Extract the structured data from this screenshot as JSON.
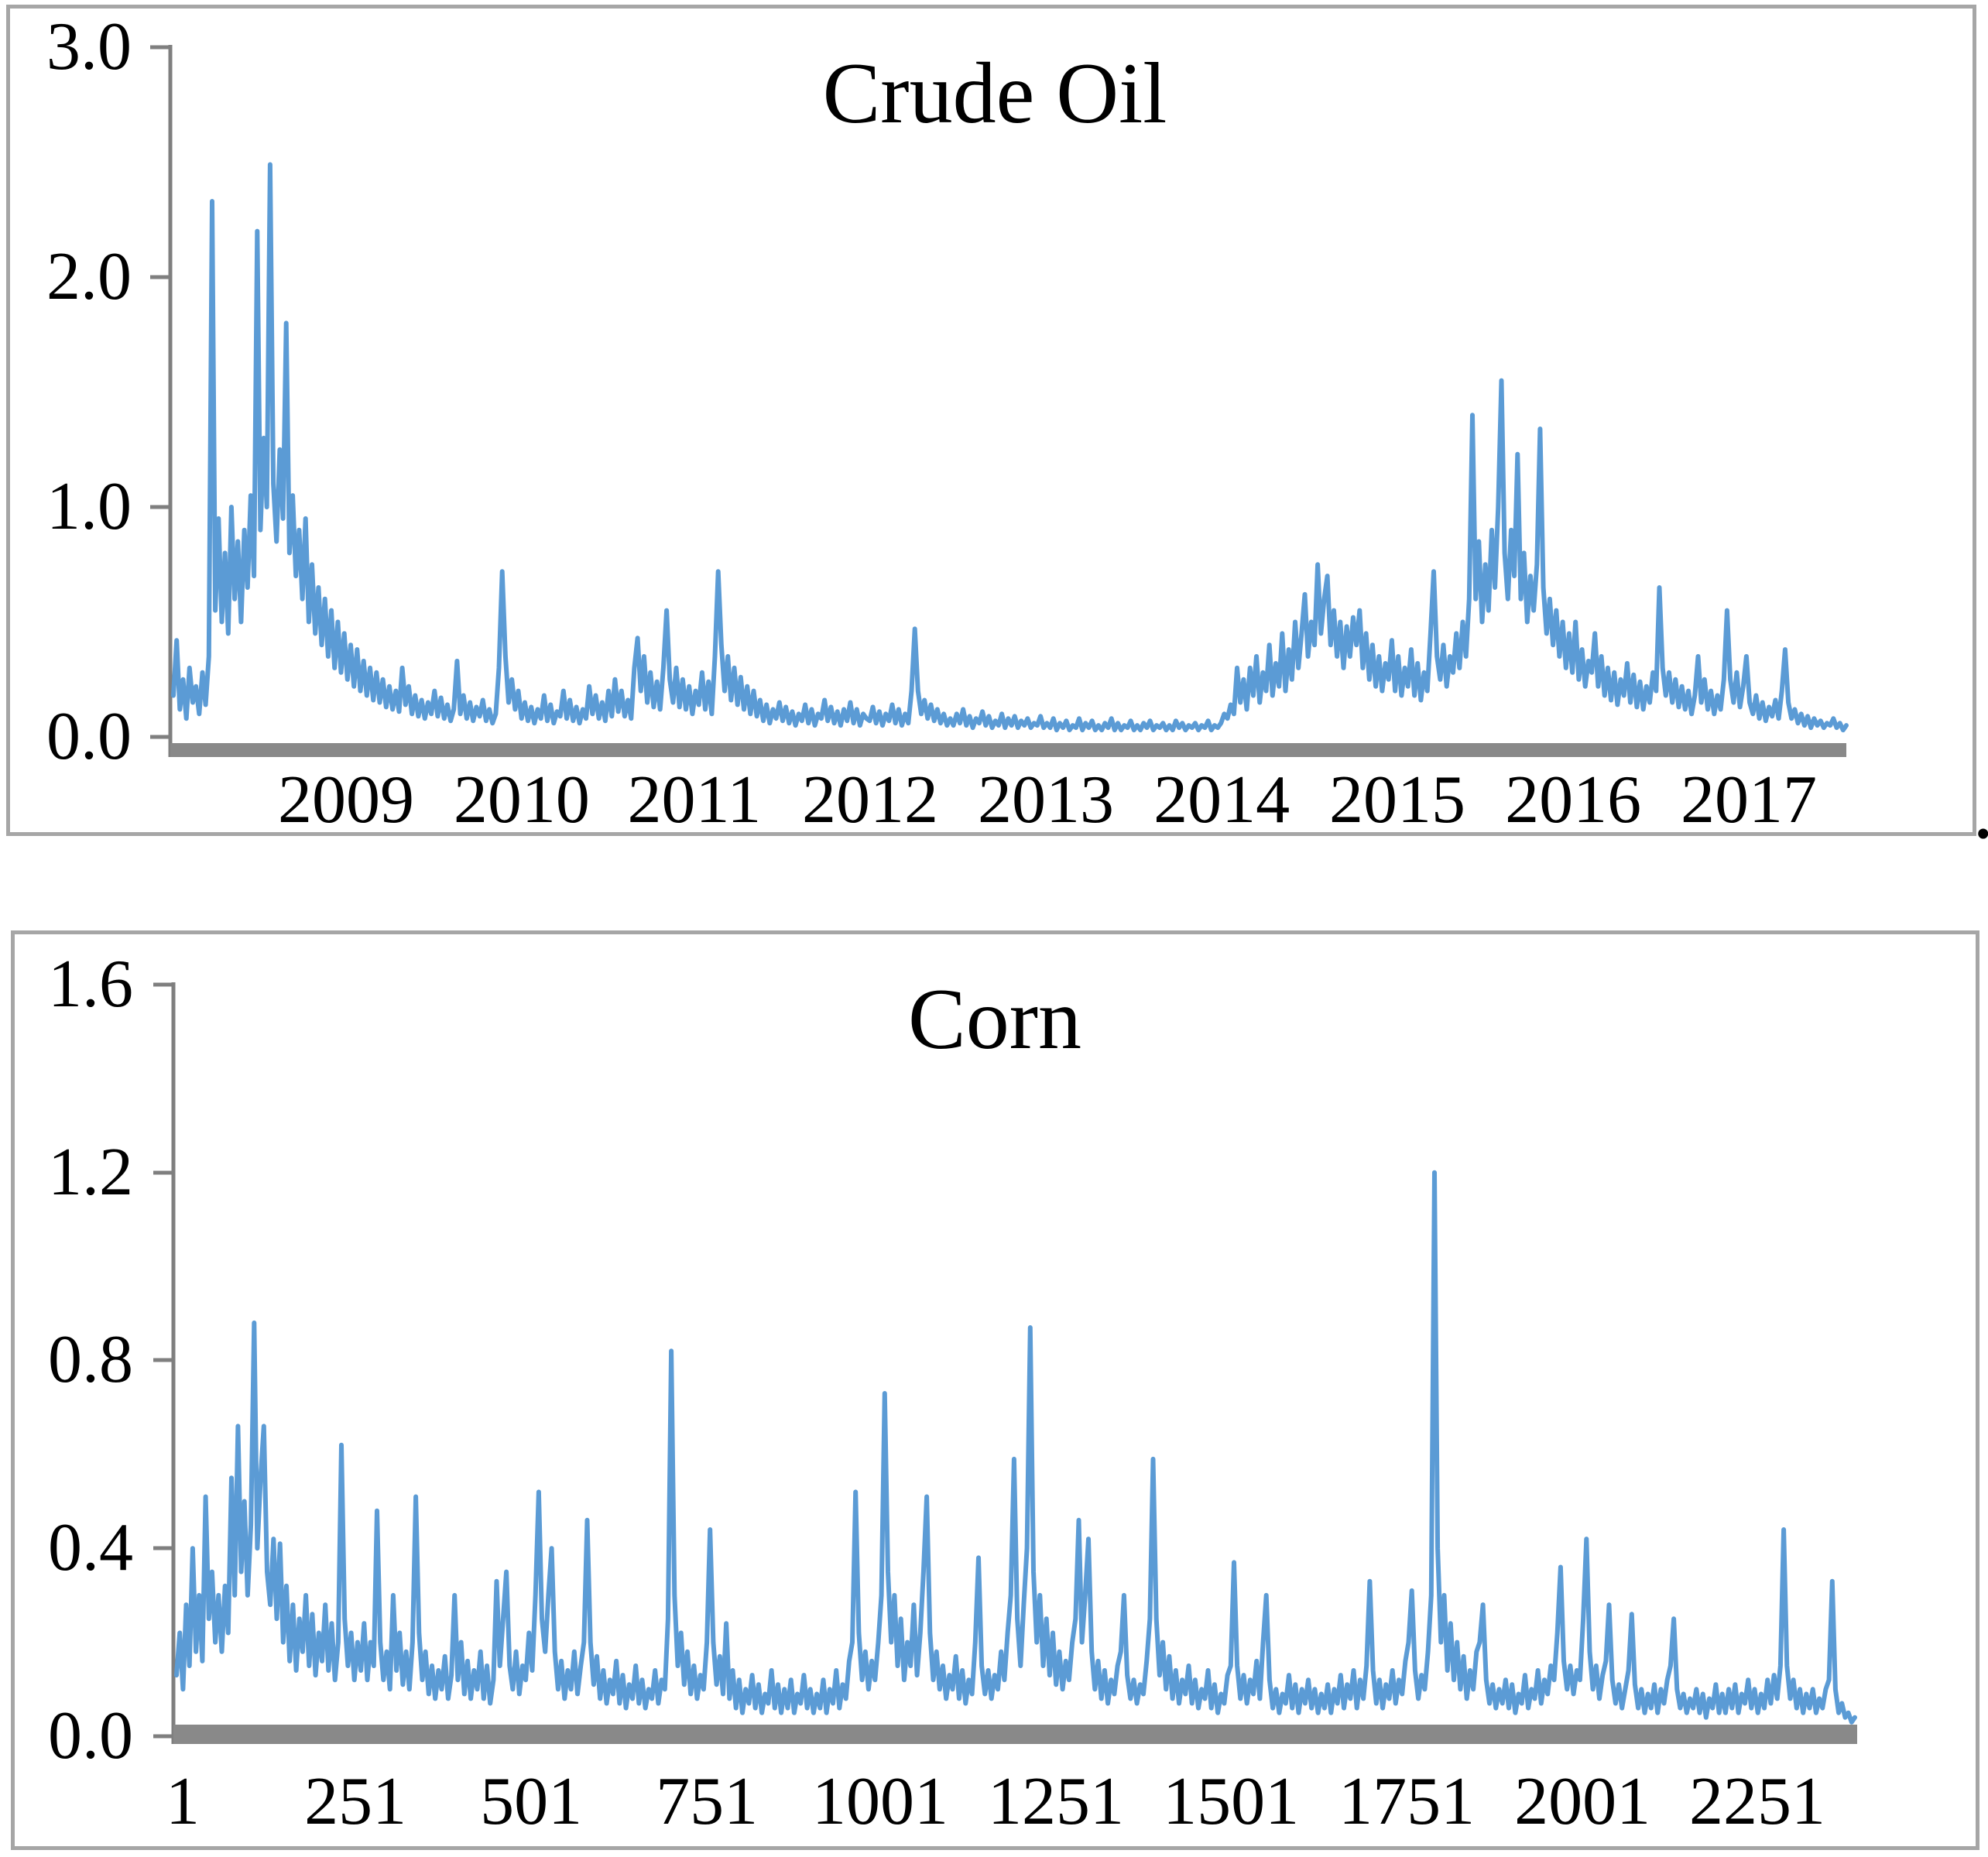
{
  "figure": {
    "trailing_period": ".",
    "background_color": "#ffffff",
    "border_color": "#a6a6a6",
    "axis_color": "#7f7f7f",
    "baseline_bar_color": "#898989",
    "series_color": "#5b9bd5"
  },
  "chart_data": [
    {
      "type": "line",
      "title": "Crude Oil",
      "legend": "none",
      "grid": "off",
      "line_color": "#5b9bd5",
      "ylim": [
        0.0,
        3.0
      ],
      "y_tick_labels": [
        "3.0",
        "2.0",
        "1.0",
        "0.0"
      ],
      "y_tick_values": [
        3.0,
        2.0,
        1.0,
        0.0
      ],
      "x_tick_labels": [
        "2009",
        "2010",
        "2011",
        "2012",
        "2013",
        "2014",
        "2015",
        "2016",
        "2017"
      ],
      "x_tick_positions": [
        0.1032,
        0.2082,
        0.3114,
        0.4165,
        0.5215,
        0.6266,
        0.7316,
        0.8367,
        0.9417
      ],
      "x_range_note": "daily observations mid-2008 through 2017",
      "values": [
        0.18,
        0.42,
        0.12,
        0.25,
        0.08,
        0.3,
        0.15,
        0.22,
        0.1,
        0.28,
        0.14,
        0.35,
        2.33,
        0.55,
        0.95,
        0.5,
        0.8,
        0.45,
        1.0,
        0.6,
        0.85,
        0.5,
        0.9,
        0.65,
        1.05,
        0.7,
        2.2,
        0.9,
        1.3,
        1.0,
        2.49,
        1.1,
        0.85,
        1.25,
        0.95,
        1.8,
        0.8,
        1.05,
        0.7,
        0.9,
        0.6,
        0.95,
        0.5,
        0.75,
        0.45,
        0.65,
        0.4,
        0.6,
        0.35,
        0.55,
        0.3,
        0.5,
        0.28,
        0.45,
        0.25,
        0.4,
        0.22,
        0.38,
        0.2,
        0.33,
        0.18,
        0.3,
        0.16,
        0.28,
        0.15,
        0.25,
        0.13,
        0.22,
        0.12,
        0.2,
        0.11,
        0.3,
        0.14,
        0.22,
        0.1,
        0.18,
        0.09,
        0.16,
        0.08,
        0.15,
        0.1,
        0.2,
        0.09,
        0.17,
        0.08,
        0.14,
        0.07,
        0.12,
        0.33,
        0.1,
        0.18,
        0.08,
        0.15,
        0.07,
        0.13,
        0.09,
        0.16,
        0.07,
        0.12,
        0.06,
        0.1,
        0.3,
        0.72,
        0.35,
        0.15,
        0.25,
        0.12,
        0.2,
        0.08,
        0.15,
        0.07,
        0.13,
        0.06,
        0.12,
        0.08,
        0.18,
        0.07,
        0.14,
        0.06,
        0.11,
        0.09,
        0.2,
        0.08,
        0.16,
        0.07,
        0.13,
        0.06,
        0.12,
        0.08,
        0.22,
        0.1,
        0.18,
        0.08,
        0.15,
        0.07,
        0.2,
        0.09,
        0.25,
        0.11,
        0.2,
        0.09,
        0.16,
        0.08,
        0.3,
        0.43,
        0.2,
        0.35,
        0.15,
        0.28,
        0.13,
        0.24,
        0.12,
        0.3,
        0.55,
        0.25,
        0.15,
        0.3,
        0.13,
        0.25,
        0.12,
        0.22,
        0.1,
        0.2,
        0.14,
        0.28,
        0.12,
        0.24,
        0.1,
        0.35,
        0.72,
        0.4,
        0.2,
        0.35,
        0.16,
        0.3,
        0.14,
        0.26,
        0.12,
        0.22,
        0.1,
        0.2,
        0.09,
        0.16,
        0.07,
        0.14,
        0.06,
        0.12,
        0.08,
        0.15,
        0.07,
        0.13,
        0.06,
        0.11,
        0.05,
        0.1,
        0.07,
        0.14,
        0.06,
        0.12,
        0.05,
        0.1,
        0.08,
        0.16,
        0.07,
        0.13,
        0.06,
        0.11,
        0.05,
        0.12,
        0.07,
        0.15,
        0.06,
        0.12,
        0.05,
        0.1,
        0.08,
        0.07,
        0.13,
        0.06,
        0.11,
        0.05,
        0.1,
        0.07,
        0.14,
        0.06,
        0.12,
        0.05,
        0.1,
        0.06,
        0.2,
        0.47,
        0.2,
        0.1,
        0.16,
        0.08,
        0.14,
        0.07,
        0.12,
        0.06,
        0.1,
        0.05,
        0.08,
        0.05,
        0.1,
        0.06,
        0.12,
        0.05,
        0.09,
        0.04,
        0.08,
        0.06,
        0.11,
        0.05,
        0.09,
        0.04,
        0.07,
        0.05,
        0.1,
        0.04,
        0.08,
        0.05,
        0.09,
        0.04,
        0.07,
        0.05,
        0.08,
        0.04,
        0.06,
        0.05,
        0.09,
        0.04,
        0.06,
        0.04,
        0.08,
        0.03,
        0.06,
        0.04,
        0.07,
        0.03,
        0.05,
        0.04,
        0.08,
        0.03,
        0.06,
        0.04,
        0.07,
        0.03,
        0.05,
        0.03,
        0.06,
        0.04,
        0.08,
        0.03,
        0.06,
        0.03,
        0.05,
        0.04,
        0.07,
        0.03,
        0.05,
        0.03,
        0.06,
        0.04,
        0.07,
        0.03,
        0.05,
        0.04,
        0.06,
        0.03,
        0.05,
        0.03,
        0.07,
        0.04,
        0.06,
        0.03,
        0.05,
        0.04,
        0.06,
        0.03,
        0.05,
        0.04,
        0.07,
        0.03,
        0.05,
        0.04,
        0.06,
        0.1,
        0.08,
        0.14,
        0.1,
        0.3,
        0.15,
        0.25,
        0.12,
        0.3,
        0.18,
        0.35,
        0.15,
        0.28,
        0.2,
        0.4,
        0.18,
        0.32,
        0.22,
        0.45,
        0.2,
        0.38,
        0.25,
        0.5,
        0.3,
        0.45,
        0.62,
        0.35,
        0.5,
        0.4,
        0.75,
        0.45,
        0.6,
        0.7,
        0.4,
        0.55,
        0.35,
        0.5,
        0.3,
        0.48,
        0.35,
        0.52,
        0.4,
        0.55,
        0.3,
        0.45,
        0.25,
        0.4,
        0.22,
        0.35,
        0.2,
        0.32,
        0.25,
        0.42,
        0.2,
        0.35,
        0.18,
        0.3,
        0.22,
        0.38,
        0.18,
        0.32,
        0.16,
        0.28,
        0.2,
        0.45,
        0.72,
        0.35,
        0.25,
        0.4,
        0.22,
        0.35,
        0.28,
        0.45,
        0.3,
        0.5,
        0.35,
        0.6,
        1.4,
        0.6,
        0.85,
        0.5,
        0.75,
        0.55,
        0.9,
        0.65,
        1.0,
        1.55,
        0.8,
        0.6,
        0.9,
        0.7,
        1.23,
        0.6,
        0.8,
        0.5,
        0.7,
        0.55,
        0.75,
        1.34,
        0.65,
        0.45,
        0.6,
        0.4,
        0.55,
        0.35,
        0.5,
        0.3,
        0.45,
        0.28,
        0.5,
        0.25,
        0.38,
        0.22,
        0.33,
        0.28,
        0.45,
        0.22,
        0.35,
        0.18,
        0.3,
        0.16,
        0.28,
        0.14,
        0.25,
        0.18,
        0.32,
        0.15,
        0.27,
        0.13,
        0.24,
        0.12,
        0.22,
        0.15,
        0.28,
        0.2,
        0.65,
        0.3,
        0.18,
        0.28,
        0.15,
        0.25,
        0.13,
        0.22,
        0.12,
        0.2,
        0.1,
        0.18,
        0.35,
        0.15,
        0.25,
        0.12,
        0.2,
        0.1,
        0.18,
        0.12,
        0.25,
        0.55,
        0.25,
        0.15,
        0.28,
        0.13,
        0.22,
        0.35,
        0.15,
        0.1,
        0.18,
        0.08,
        0.15,
        0.07,
        0.13,
        0.09,
        0.16,
        0.08,
        0.2,
        0.38,
        0.15,
        0.08,
        0.12,
        0.06,
        0.1,
        0.05,
        0.09,
        0.04,
        0.08,
        0.05,
        0.07,
        0.04,
        0.06,
        0.05,
        0.08,
        0.04,
        0.06,
        0.03,
        0.05
      ]
    },
    {
      "type": "line",
      "title": "Corn",
      "legend": "none",
      "grid": "off",
      "line_color": "#5b9bd5",
      "ylim": [
        0.0,
        1.6
      ],
      "y_tick_labels": [
        "1.6",
        "1.2",
        "0.8",
        "0.4",
        "0.0"
      ],
      "y_tick_values": [
        1.6,
        1.2,
        0.8,
        0.4,
        0.0
      ],
      "x_tick_labels": [
        "1",
        "251",
        "501",
        "751",
        "1001",
        "1251",
        "1501",
        "1751",
        "2001",
        "2251"
      ],
      "x_tick_positions": [
        0.0037,
        0.1066,
        0.2113,
        0.316,
        0.4193,
        0.524,
        0.6283,
        0.733,
        0.8377,
        0.9419
      ],
      "x_range_note": "observation index 1 to ~2400",
      "values": [
        0.13,
        0.22,
        0.1,
        0.28,
        0.15,
        0.4,
        0.18,
        0.3,
        0.16,
        0.51,
        0.25,
        0.35,
        0.2,
        0.3,
        0.18,
        0.32,
        0.22,
        0.55,
        0.3,
        0.66,
        0.35,
        0.5,
        0.3,
        0.45,
        0.88,
        0.4,
        0.55,
        0.66,
        0.35,
        0.28,
        0.42,
        0.25,
        0.41,
        0.2,
        0.32,
        0.16,
        0.28,
        0.14,
        0.25,
        0.18,
        0.3,
        0.15,
        0.26,
        0.13,
        0.22,
        0.16,
        0.28,
        0.14,
        0.24,
        0.12,
        0.2,
        0.62,
        0.25,
        0.15,
        0.22,
        0.12,
        0.2,
        0.14,
        0.24,
        0.12,
        0.2,
        0.15,
        0.48,
        0.2,
        0.12,
        0.18,
        0.1,
        0.3,
        0.14,
        0.22,
        0.11,
        0.18,
        0.1,
        0.2,
        0.51,
        0.22,
        0.12,
        0.18,
        0.09,
        0.15,
        0.08,
        0.14,
        0.1,
        0.17,
        0.08,
        0.13,
        0.3,
        0.12,
        0.2,
        0.09,
        0.16,
        0.08,
        0.14,
        0.1,
        0.18,
        0.08,
        0.15,
        0.07,
        0.12,
        0.33,
        0.15,
        0.25,
        0.35,
        0.15,
        0.1,
        0.18,
        0.09,
        0.15,
        0.12,
        0.22,
        0.14,
        0.3,
        0.52,
        0.25,
        0.18,
        0.3,
        0.4,
        0.18,
        0.1,
        0.16,
        0.08,
        0.14,
        0.1,
        0.18,
        0.09,
        0.15,
        0.2,
        0.46,
        0.2,
        0.11,
        0.17,
        0.08,
        0.14,
        0.07,
        0.12,
        0.09,
        0.16,
        0.07,
        0.13,
        0.06,
        0.11,
        0.08,
        0.15,
        0.07,
        0.12,
        0.06,
        0.1,
        0.08,
        0.14,
        0.07,
        0.12,
        0.1,
        0.25,
        0.82,
        0.3,
        0.15,
        0.22,
        0.11,
        0.18,
        0.09,
        0.15,
        0.08,
        0.13,
        0.1,
        0.2,
        0.44,
        0.2,
        0.11,
        0.17,
        0.09,
        0.24,
        0.08,
        0.14,
        0.06,
        0.12,
        0.05,
        0.1,
        0.07,
        0.13,
        0.06,
        0.11,
        0.05,
        0.09,
        0.07,
        0.14,
        0.06,
        0.11,
        0.05,
        0.1,
        0.06,
        0.12,
        0.05,
        0.09,
        0.07,
        0.13,
        0.06,
        0.1,
        0.05,
        0.09,
        0.06,
        0.12,
        0.05,
        0.1,
        0.07,
        0.14,
        0.06,
        0.11,
        0.08,
        0.16,
        0.2,
        0.52,
        0.22,
        0.12,
        0.18,
        0.1,
        0.16,
        0.12,
        0.2,
        0.3,
        0.73,
        0.35,
        0.2,
        0.3,
        0.15,
        0.25,
        0.12,
        0.2,
        0.15,
        0.28,
        0.13,
        0.22,
        0.35,
        0.51,
        0.22,
        0.12,
        0.18,
        0.1,
        0.15,
        0.08,
        0.13,
        0.1,
        0.17,
        0.08,
        0.14,
        0.07,
        0.12,
        0.09,
        0.2,
        0.38,
        0.15,
        0.09,
        0.14,
        0.08,
        0.13,
        0.1,
        0.18,
        0.12,
        0.22,
        0.3,
        0.59,
        0.25,
        0.15,
        0.28,
        0.4,
        0.87,
        0.35,
        0.2,
        0.3,
        0.15,
        0.25,
        0.13,
        0.22,
        0.11,
        0.18,
        0.1,
        0.16,
        0.12,
        0.2,
        0.25,
        0.46,
        0.2,
        0.3,
        0.42,
        0.18,
        0.1,
        0.16,
        0.08,
        0.14,
        0.07,
        0.12,
        0.09,
        0.15,
        0.18,
        0.3,
        0.13,
        0.08,
        0.12,
        0.07,
        0.11,
        0.09,
        0.16,
        0.25,
        0.59,
        0.25,
        0.13,
        0.2,
        0.1,
        0.17,
        0.08,
        0.14,
        0.07,
        0.12,
        0.09,
        0.15,
        0.07,
        0.12,
        0.06,
        0.1,
        0.08,
        0.14,
        0.06,
        0.11,
        0.05,
        0.09,
        0.07,
        0.13,
        0.15,
        0.37,
        0.15,
        0.08,
        0.13,
        0.07,
        0.12,
        0.09,
        0.16,
        0.08,
        0.2,
        0.3,
        0.12,
        0.06,
        0.1,
        0.05,
        0.09,
        0.07,
        0.13,
        0.06,
        0.11,
        0.05,
        0.1,
        0.07,
        0.12,
        0.06,
        0.1,
        0.05,
        0.09,
        0.06,
        0.11,
        0.05,
        0.1,
        0.07,
        0.13,
        0.06,
        0.11,
        0.08,
        0.14,
        0.06,
        0.12,
        0.08,
        0.15,
        0.33,
        0.14,
        0.07,
        0.12,
        0.06,
        0.11,
        0.08,
        0.14,
        0.07,
        0.12,
        0.09,
        0.16,
        0.2,
        0.31,
        0.14,
        0.08,
        0.13,
        0.1,
        0.18,
        0.3,
        1.2,
        0.4,
        0.2,
        0.3,
        0.14,
        0.24,
        0.12,
        0.2,
        0.1,
        0.17,
        0.08,
        0.14,
        0.1,
        0.18,
        0.2,
        0.28,
        0.12,
        0.07,
        0.11,
        0.06,
        0.1,
        0.07,
        0.12,
        0.06,
        0.11,
        0.05,
        0.09,
        0.07,
        0.13,
        0.06,
        0.1,
        0.08,
        0.14,
        0.07,
        0.12,
        0.09,
        0.15,
        0.12,
        0.22,
        0.36,
        0.16,
        0.1,
        0.15,
        0.09,
        0.14,
        0.12,
        0.25,
        0.42,
        0.18,
        0.1,
        0.15,
        0.08,
        0.13,
        0.16,
        0.28,
        0.12,
        0.07,
        0.11,
        0.06,
        0.1,
        0.14,
        0.26,
        0.11,
        0.06,
        0.1,
        0.05,
        0.09,
        0.06,
        0.11,
        0.05,
        0.1,
        0.07,
        0.12,
        0.15,
        0.25,
        0.1,
        0.06,
        0.09,
        0.05,
        0.08,
        0.06,
        0.1,
        0.05,
        0.09,
        0.04,
        0.08,
        0.06,
        0.11,
        0.05,
        0.09,
        0.05,
        0.1,
        0.06,
        0.11,
        0.05,
        0.09,
        0.07,
        0.12,
        0.06,
        0.1,
        0.05,
        0.09,
        0.06,
        0.12,
        0.07,
        0.13,
        0.08,
        0.15,
        0.44,
        0.15,
        0.08,
        0.12,
        0.06,
        0.1,
        0.05,
        0.09,
        0.06,
        0.1,
        0.05,
        0.08,
        0.06,
        0.1,
        0.12,
        0.33,
        0.1,
        0.05,
        0.07,
        0.04,
        0.05,
        0.03,
        0.04
      ]
    }
  ]
}
